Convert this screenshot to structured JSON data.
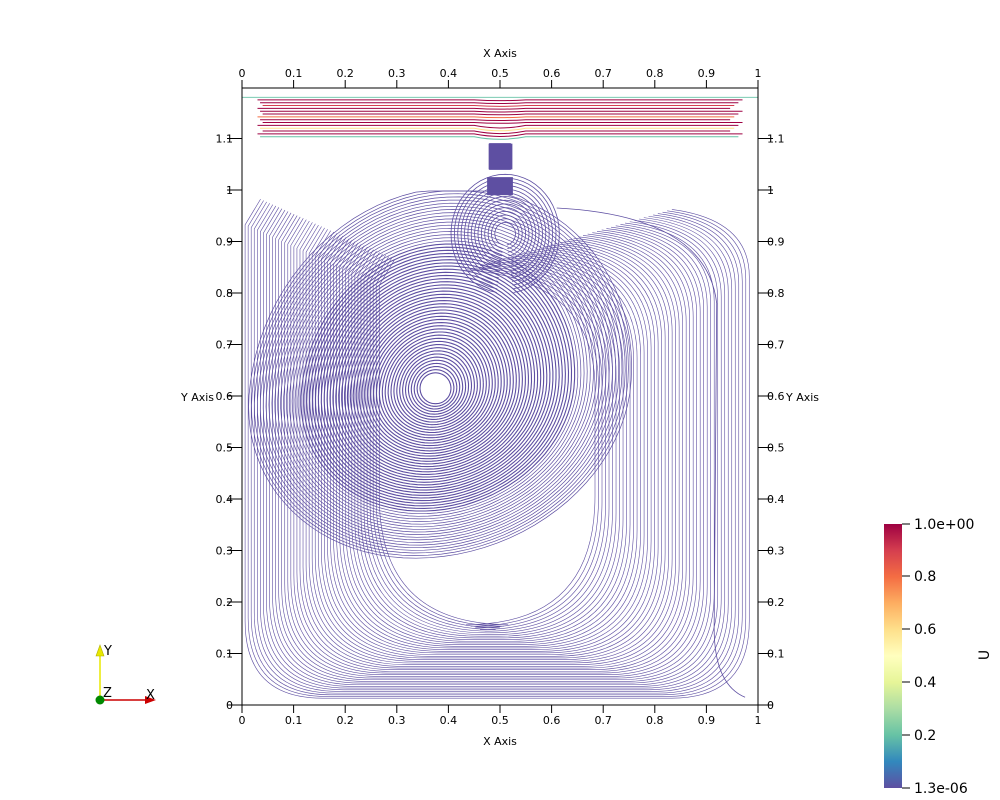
{
  "axes": {
    "x_title": "X Axis",
    "y_title": "Y Axis",
    "x_ticks": [
      "0",
      "0.1",
      "0.2",
      "0.3",
      "0.4",
      "0.5",
      "0.6",
      "0.7",
      "0.8",
      "0.9",
      "1"
    ],
    "y_ticks": [
      "0",
      "0.1",
      "0.2",
      "0.3",
      "0.4",
      "0.5",
      "0.6",
      "0.7",
      "0.8",
      "0.9",
      "1",
      "1.1"
    ]
  },
  "colorbar": {
    "title": "U",
    "labels": [
      "1.0e+00",
      "0.8",
      "0.6",
      "0.4",
      "0.2",
      "1.3e-06"
    ],
    "colors": [
      "#9e0142",
      "#d53e4f",
      "#f46d43",
      "#fdae61",
      "#fee08b",
      "#ffffbf",
      "#e6f598",
      "#abdda4",
      "#66c2a5",
      "#3288bd",
      "#5e4fa2"
    ]
  },
  "orientation_triad": {
    "x_label": "X",
    "y_label": "Y",
    "z_label": "Z",
    "x_color": "#cc0000",
    "y_color": "#e8e800",
    "z_color": "#008800"
  },
  "streamline_color": "#5e4fa2",
  "chart_data": {
    "type": "streamlines",
    "xlim": [
      0,
      1
    ],
    "ylim": [
      0,
      1.1
    ],
    "xlabel": "X Axis",
    "ylabel": "Y Axis",
    "colorbar_range": [
      1.3e-06,
      1.0
    ],
    "colorbar_label": "U"
  }
}
